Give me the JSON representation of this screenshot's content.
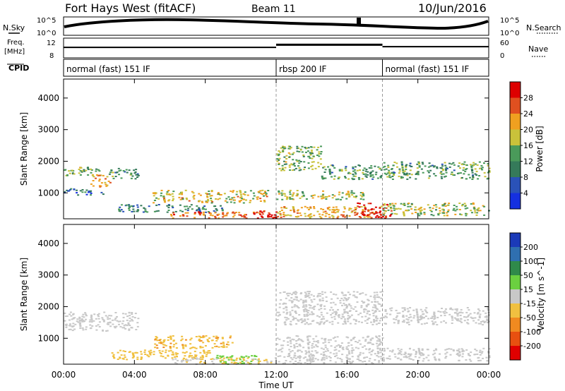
{
  "header": {
    "station": "Fort Hays West (fitACF)",
    "beam": "Beam 11",
    "date": "10/Jun/2016"
  },
  "noise_panel": {
    "left_label": "N.Sky",
    "right_label": "N.Search",
    "left_ticks": [
      "10^5",
      "10^0"
    ],
    "right_ticks": [
      "10^5",
      "10^0"
    ]
  },
  "freq_panel": {
    "left_label_1": "Freq.",
    "left_label_2": "[MHz]",
    "left_ticks": [
      "12",
      "8"
    ],
    "right_label": "Nave",
    "right_ticks": [
      "60",
      "0"
    ]
  },
  "cpid_panel": {
    "label": "CPID",
    "modes": [
      {
        "name": "normal (fast) 151 IF",
        "start_hour": 0,
        "end_hour": 12
      },
      {
        "name": "rbsp 200 IF",
        "start_hour": 12,
        "end_hour": 18
      },
      {
        "name": "normal (fast) 151 IF",
        "start_hour": 18,
        "end_hour": 24
      }
    ]
  },
  "power_panel": {
    "ylabel": "Slant Range [km]",
    "yticks": [
      "4000",
      "3000",
      "2000",
      "1000"
    ],
    "colorbar_title": "Power [dB]",
    "colorbar_ticks": [
      "28",
      "24",
      "20",
      "16",
      "12",
      "8",
      "4"
    ],
    "colors": [
      "#1530e0",
      "#2a52b8",
      "#357a5a",
      "#4a9a5a",
      "#c9c23a",
      "#f0a020",
      "#e05020",
      "#dd0000"
    ]
  },
  "velocity_panel": {
    "ylabel": "Slant Range [km]",
    "yticks": [
      "4000",
      "3000",
      "2000",
      "1000"
    ],
    "colorbar_title": "Velocity [m s^-1]",
    "colorbar_ticks": [
      "200",
      "100",
      "50",
      "15",
      "-15",
      "-50",
      "-100",
      "-200"
    ],
    "colors": [
      "#1b3ab8",
      "#2f6fb0",
      "#2f8a4a",
      "#6bd040",
      "#c8c8c8",
      "#f0c040",
      "#f08a20",
      "#e85010",
      "#e00000"
    ]
  },
  "xaxis": {
    "label": "Time UT",
    "ticks": [
      "00:00",
      "04:00",
      "08:00",
      "12:00",
      "16:00",
      "20:00",
      "00:00"
    ]
  },
  "chart_data": {
    "type": "heatmap",
    "title": "Fort Hays West (fitACF)   Beam 11   10/Jun/2016",
    "xlabel": "Time UT",
    "ylabel": "Slant Range [km]",
    "xlim_hours": [
      0,
      24
    ],
    "ylim_km": [
      180,
      4600
    ],
    "series": [
      {
        "name": "Power [dB]",
        "zlim": [
          0,
          30
        ],
        "echo_regions": [
          {
            "t0": 0.0,
            "t1": 2.0,
            "r0": 1550,
            "r1": 1850,
            "value": 14
          },
          {
            "t0": 1.5,
            "t1": 2.6,
            "r0": 1200,
            "r1": 1600,
            "value": 20
          },
          {
            "t0": 2.5,
            "t1": 4.2,
            "r0": 1450,
            "r1": 1800,
            "value": 12
          },
          {
            "t0": 0.0,
            "t1": 2.2,
            "r0": 950,
            "r1": 1150,
            "value": 8
          },
          {
            "t0": 5.0,
            "t1": 11.5,
            "r0": 700,
            "r1": 1100,
            "value": 18
          },
          {
            "t0": 3.0,
            "t1": 9.0,
            "r0": 400,
            "r1": 650,
            "value": 10
          },
          {
            "t0": 6.0,
            "t1": 12.0,
            "r0": 220,
            "r1": 420,
            "value": 24
          },
          {
            "t0": 11.0,
            "t1": 12.0,
            "r0": 220,
            "r1": 450,
            "value": 28
          },
          {
            "t0": 12.0,
            "t1": 14.5,
            "r0": 1700,
            "r1": 2500,
            "value": 14
          },
          {
            "t0": 14.5,
            "t1": 18.0,
            "r0": 1450,
            "r1": 1900,
            "value": 12
          },
          {
            "t0": 12.0,
            "t1": 17.0,
            "r0": 800,
            "r1": 1100,
            "value": 16
          },
          {
            "t0": 12.0,
            "t1": 18.0,
            "r0": 220,
            "r1": 600,
            "value": 20
          },
          {
            "t0": 16.5,
            "t1": 18.5,
            "r0": 220,
            "r1": 700,
            "value": 28
          },
          {
            "t0": 18.0,
            "t1": 24.0,
            "r0": 1450,
            "r1": 2000,
            "value": 12
          },
          {
            "t0": 18.0,
            "t1": 24.0,
            "r0": 300,
            "r1": 700,
            "value": 16
          }
        ]
      },
      {
        "name": "Velocity [m s^-1]",
        "zlim": [
          -250,
          250
        ],
        "echo_regions": [
          {
            "t0": 0.0,
            "t1": 4.2,
            "r0": 1250,
            "r1": 1850,
            "value": 0
          },
          {
            "t0": 5.0,
            "t1": 9.5,
            "r0": 700,
            "r1": 1100,
            "value": -70
          },
          {
            "t0": 2.5,
            "t1": 8.5,
            "r0": 350,
            "r1": 650,
            "value": -60
          },
          {
            "t0": 8.5,
            "t1": 11.0,
            "r0": 200,
            "r1": 500,
            "value": 60
          },
          {
            "t0": 6.0,
            "t1": 12.0,
            "r0": 200,
            "r1": 400,
            "value": -30
          },
          {
            "t0": 12.0,
            "t1": 18.0,
            "r0": 1450,
            "r1": 2500,
            "value": 0
          },
          {
            "t0": 12.0,
            "t1": 18.0,
            "r0": 200,
            "r1": 1100,
            "value": 0
          },
          {
            "t0": 18.0,
            "t1": 24.0,
            "r0": 1450,
            "r1": 2000,
            "value": 0
          },
          {
            "t0": 18.0,
            "t1": 24.0,
            "r0": 300,
            "r1": 700,
            "value": 0
          }
        ]
      }
    ],
    "frequency_mhz": [
      {
        "t0": 0,
        "t1": 12,
        "value": 10.2
      },
      {
        "t0": 12,
        "t1": 18,
        "value": 11.0
      },
      {
        "t0": 18,
        "t1": 24,
        "value": 10.4
      }
    ]
  }
}
